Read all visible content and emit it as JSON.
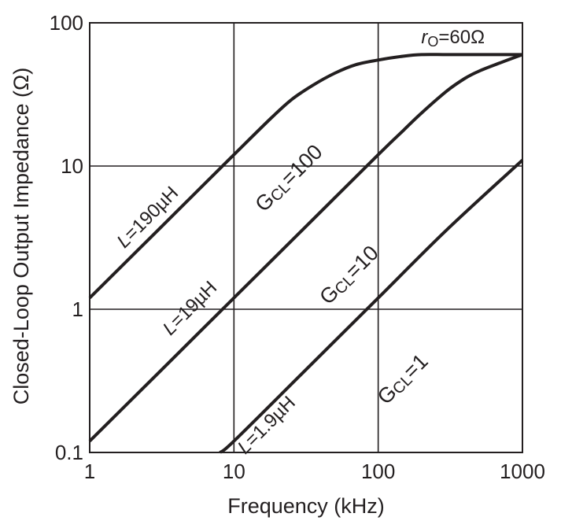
{
  "chart_data": {
    "type": "line",
    "x_scale": "log",
    "y_scale": "log",
    "xlim": [
      1,
      1000
    ],
    "ylim": [
      0.1,
      100
    ],
    "grid": true,
    "xlabel": "Frequency (kHz)",
    "ylabel": "Closed-Loop Output Impedance (Ω)",
    "x_ticks": [
      {
        "value": 1,
        "label": "1"
      },
      {
        "value": 10,
        "label": "10"
      },
      {
        "value": 100,
        "label": "100"
      },
      {
        "value": 1000,
        "label": "1000"
      }
    ],
    "y_ticks": [
      {
        "value": 0.1,
        "label": "0.1"
      },
      {
        "value": 1,
        "label": "1"
      },
      {
        "value": 10,
        "label": "10"
      },
      {
        "value": 100,
        "label": "100"
      }
    ],
    "series": [
      {
        "x": [
          1,
          3,
          10,
          18,
          25,
          35,
          50,
          70,
          100,
          150,
          200,
          300,
          500,
          1000
        ],
        "y": [
          1.2,
          3.6,
          12,
          21.5,
          29,
          36.5,
          44.5,
          51,
          55,
          58.5,
          60,
          60,
          60,
          60
        ]
      },
      {
        "x": [
          1,
          3,
          10,
          30,
          100,
          150,
          200,
          300,
          400,
          500,
          700,
          1000
        ],
        "y": [
          0.12,
          0.36,
          1.2,
          3.6,
          12,
          17.8,
          23.5,
          33.5,
          41,
          46,
          52.5,
          60
        ]
      },
      {
        "x": [
          8,
          10,
          30,
          100,
          300,
          1000
        ],
        "y": [
          0.1,
          0.12,
          0.36,
          1.2,
          3.6,
          11
        ]
      }
    ],
    "annotations": [
      {
        "id": "ro",
        "text_italic": "r",
        "text_sub": "O",
        "text_rest": "=60Ω",
        "x": 330,
        "y": 72
      },
      {
        "id": "L190",
        "text_italic": "L",
        "text_rest": "=190µH",
        "x": 2.7,
        "y": 4.1,
        "angle": -45
      },
      {
        "id": "L19",
        "text_italic": "L",
        "text_rest": "=19µH",
        "x": 5.3,
        "y": 0.95,
        "angle": -45
      },
      {
        "id": "L19u",
        "text_italic": "L",
        "text_rest": "=1.9µH",
        "x": 18,
        "y": 0.145,
        "angle": -45
      },
      {
        "id": "G100",
        "text_main": "G",
        "text_sub": "CL",
        "text_rest": "=100",
        "x": 26,
        "y": 7.6,
        "angle": -45
      },
      {
        "id": "G10",
        "text_main": "G",
        "text_sub": "CL",
        "text_rest": "=10",
        "x": 68,
        "y": 1.6,
        "angle": -45
      },
      {
        "id": "G1",
        "text_main": "G",
        "text_sub": "CL",
        "text_rest": "=1",
        "x": 160,
        "y": 0.3,
        "angle": -45
      }
    ]
  }
}
